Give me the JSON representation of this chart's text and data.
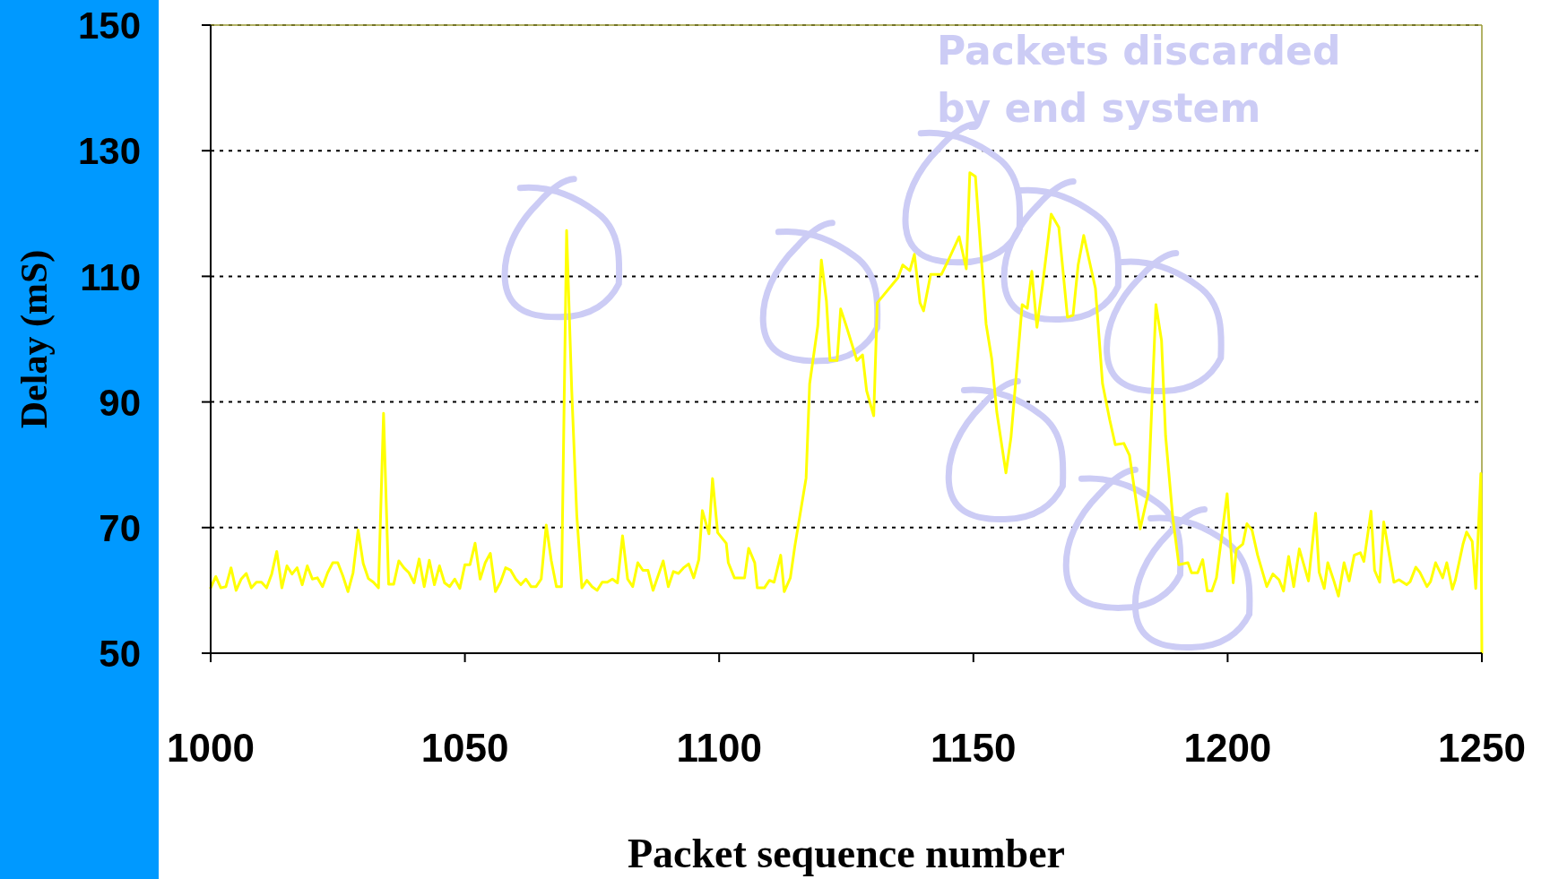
{
  "chart_data": {
    "type": "line",
    "xlabel": "Packet sequence number",
    "ylabel": "Delay (mS)",
    "annotations": [
      "Packets discarded\nby end system"
    ],
    "xlim": [
      1000,
      1250
    ],
    "xticks": [
      1000,
      1050,
      1100,
      1150,
      1200,
      1250
    ],
    "ylim": [
      50,
      150
    ],
    "yticks": [
      50,
      70,
      90,
      110,
      130,
      150
    ],
    "grid": "y",
    "marker": "none",
    "line_style": "solid",
    "series": [
      {
        "color": "#ffff00",
        "x": [
          1000,
          1001,
          1002,
          1003,
          1004,
          1005,
          1006,
          1007,
          1008,
          1009,
          1010,
          1011,
          1012,
          1013,
          1014,
          1015,
          1016,
          1017,
          1018,
          1019,
          1020,
          1021,
          1022,
          1023,
          1024,
          1025,
          1026,
          1027,
          1028,
          1029,
          1030,
          1031,
          1032,
          1033,
          1034,
          1035,
          1036,
          1037,
          1038,
          1039,
          1040,
          1041,
          1042,
          1043,
          1044,
          1045,
          1046,
          1047,
          1048,
          1049,
          1050,
          1051,
          1052,
          1053,
          1054,
          1055,
          1056,
          1057,
          1058,
          1059,
          1060,
          1061,
          1062,
          1063,
          1064,
          1065,
          1066,
          1067,
          1068,
          1069,
          1070,
          1071,
          1072,
          1073,
          1074,
          1075,
          1076,
          1077,
          1078,
          1079,
          1080,
          1081,
          1082,
          1083,
          1084,
          1085,
          1086,
          1087,
          1089,
          1090,
          1091,
          1092,
          1093,
          1094,
          1095,
          1096,
          1096.7,
          1098,
          1098.7,
          1099.7,
          1101.4,
          1101.8,
          1103,
          1105,
          1105.8,
          1107,
          1107.5,
          1108.9,
          1109.9,
          1110.8,
          1112.1,
          1112.8,
          1114,
          1114.9,
          1117.1,
          1117.8,
          1119.4,
          1120.1,
          1121.1,
          1121.8,
          1123.2,
          1123.9,
          1125,
          1127.1,
          1128.2,
          1129,
          1130.4,
          1131.1,
          1135.2,
          1136.1,
          1137.5,
          1138.4,
          1139.5,
          1140.2,
          1141.6,
          1143.7,
          1145.1,
          1147.2,
          1148.6,
          1149.3,
          1150.4,
          1152.5,
          1153.6,
          1154.6,
          1156.4,
          1157.4,
          1159.6,
          1160.6,
          1161.5,
          1162.5,
          1163.6,
          1165.3,
          1166.8,
          1168.5,
          1169.6,
          1170.6,
          1171.7,
          1174,
          1175.4,
          1176.8,
          1177.9,
          1179.6,
          1180.7,
          1182.8,
          1184.4,
          1185.9,
          1187,
          1187.8,
          1189.2,
          1190.4,
          1192.2,
          1192.9,
          1194.1,
          1195.1,
          1196,
          1196.9,
          1197.8,
          1199.9,
          1201.1,
          1201.7,
          1203,
          1203.8,
          1204.8,
          1205.9,
          1207.7,
          1208.9,
          1210.1,
          1211,
          1212,
          1213,
          1214.1,
          1215.9,
          1217.3,
          1218,
          1219,
          1219.7,
          1220.9,
          1221.8,
          1222.9,
          1223.9,
          1224.9,
          1226.1,
          1226.8,
          1228.2,
          1228.9,
          1229.9,
          1230.7,
          1232.7,
          1233.7,
          1235.2,
          1235.9,
          1237,
          1237.8,
          1239.2,
          1239.9,
          1240.9,
          1242.3,
          1243.1,
          1244.2,
          1244.8,
          1246.3,
          1247,
          1248.1,
          1248.8,
          1249.8,
          1250
        ],
        "values": [
          60.4,
          62.2,
          60.4,
          60.6,
          63.6,
          60,
          61.8,
          62.7,
          60.4,
          61.3,
          61.3,
          60.4,
          62.6,
          66.2,
          60.4,
          63.9,
          62.6,
          63.6,
          60.9,
          63.9,
          61.8,
          62,
          60.6,
          62.8,
          64.4,
          64.4,
          62.3,
          59.8,
          62.8,
          69.6,
          64.3,
          61.9,
          61.3,
          60.4,
          88.2,
          61,
          61,
          64.7,
          63.6,
          62.8,
          61.2,
          65,
          60.6,
          64.8,
          60.9,
          63.9,
          61.2,
          60.6,
          61.8,
          60.3,
          64.1,
          64.1,
          67.5,
          61.8,
          64.4,
          65.9,
          59.8,
          61.3,
          63.6,
          63.2,
          61.8,
          60.9,
          61.8,
          60.6,
          60.6,
          61.8,
          70.4,
          64.7,
          60.6,
          60.6,
          117.3,
          92,
          72,
          60.4,
          61.6,
          60.6,
          60,
          61.3,
          61.3,
          61.8,
          61.2,
          68.7,
          61.8,
          60.6,
          64.4,
          63.2,
          63.2,
          60,
          64.7,
          60.6,
          63,
          62.7,
          63.6,
          64.2,
          62,
          64.9,
          72.7,
          69,
          77.8,
          69.2,
          67.5,
          64.4,
          62,
          62,
          66.7,
          64.4,
          60.4,
          60.4,
          61.6,
          61.3,
          65.6,
          59.8,
          62,
          67.1,
          77.9,
          92.9,
          102.1,
          112.6,
          106.1,
          96.6,
          96.6,
          104.8,
          102.1,
          96.6,
          97.5,
          91.8,
          87.8,
          105.8,
          109.8,
          111.8,
          110.9,
          113.5,
          105.8,
          104.5,
          110.3,
          110.3,
          112.6,
          116.3,
          111.2,
          126.5,
          125.9,
          102.4,
          96.9,
          88.4,
          78.7,
          84.4,
          105.5,
          104.9,
          110.8,
          101.9,
          108.6,
          119.9,
          117.8,
          103.5,
          103.8,
          111.8,
          116.5,
          108.1,
          92.9,
          87.2,
          83.2,
          83.4,
          81.5,
          69.8,
          75.5,
          105.5,
          99.8,
          84.6,
          71.7,
          64.1,
          64.4,
          62.8,
          62.8,
          64.9,
          59.9,
          59.9,
          62,
          75.4,
          61.2,
          66.5,
          67.4,
          70.6,
          69.6,
          65.6,
          60.6,
          62.6,
          61.7,
          59.9,
          65.4,
          60.6,
          66.6,
          61.5,
          72.3,
          62.9,
          60.3,
          64.4,
          61.5,
          59.1,
          64.4,
          61.5,
          65.6,
          66,
          64.6,
          72.6,
          63.2,
          61.3,
          70.9,
          61.3,
          61.7,
          60.9,
          61.4,
          63.7,
          62.9,
          60.6,
          61.4,
          64.4,
          62,
          64.4,
          60.2,
          61.7,
          67.4,
          69.3,
          67.8,
          60.3,
          78.6,
          50
        ]
      }
    ]
  }
}
